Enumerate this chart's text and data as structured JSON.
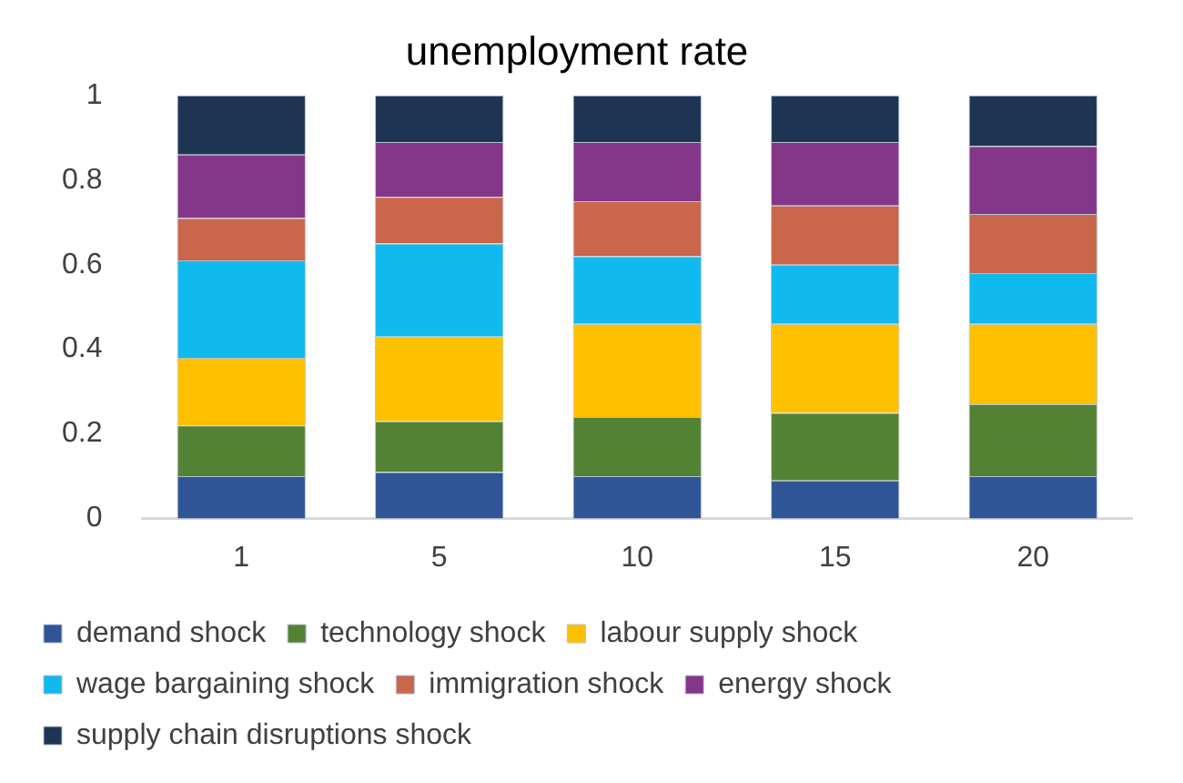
{
  "chart_data": {
    "type": "bar",
    "title": "unemployment rate",
    "categories": [
      "1",
      "5",
      "10",
      "15",
      "20"
    ],
    "stacked": true,
    "ylim": [
      0,
      1
    ],
    "yticks": [
      0,
      0.2,
      0.4,
      0.6,
      0.8,
      1
    ],
    "grid": false,
    "legend": "bottom",
    "series": [
      {
        "name": "demand shock",
        "color": "#2f5597",
        "values": [
          0.1,
          0.11,
          0.1,
          0.09,
          0.1
        ]
      },
      {
        "name": "technology shock",
        "color": "#548235",
        "values": [
          0.12,
          0.12,
          0.14,
          0.16,
          0.17
        ]
      },
      {
        "name": "labour supply shock",
        "color": "#ffc000",
        "values": [
          0.16,
          0.2,
          0.22,
          0.21,
          0.19
        ]
      },
      {
        "name": "wage bargaining shock",
        "color": "#10b9ee",
        "values": [
          0.23,
          0.22,
          0.16,
          0.14,
          0.12
        ]
      },
      {
        "name": "immigration shock",
        "color": "#c9664b",
        "values": [
          0.1,
          0.11,
          0.13,
          0.14,
          0.14
        ]
      },
      {
        "name": "energy shock",
        "color": "#843689",
        "values": [
          0.15,
          0.13,
          0.14,
          0.15,
          0.16
        ]
      },
      {
        "name": "supply chain disruptions shock",
        "color": "#1d3553",
        "values": [
          0.14,
          0.11,
          0.11,
          0.11,
          0.12
        ]
      }
    ]
  }
}
